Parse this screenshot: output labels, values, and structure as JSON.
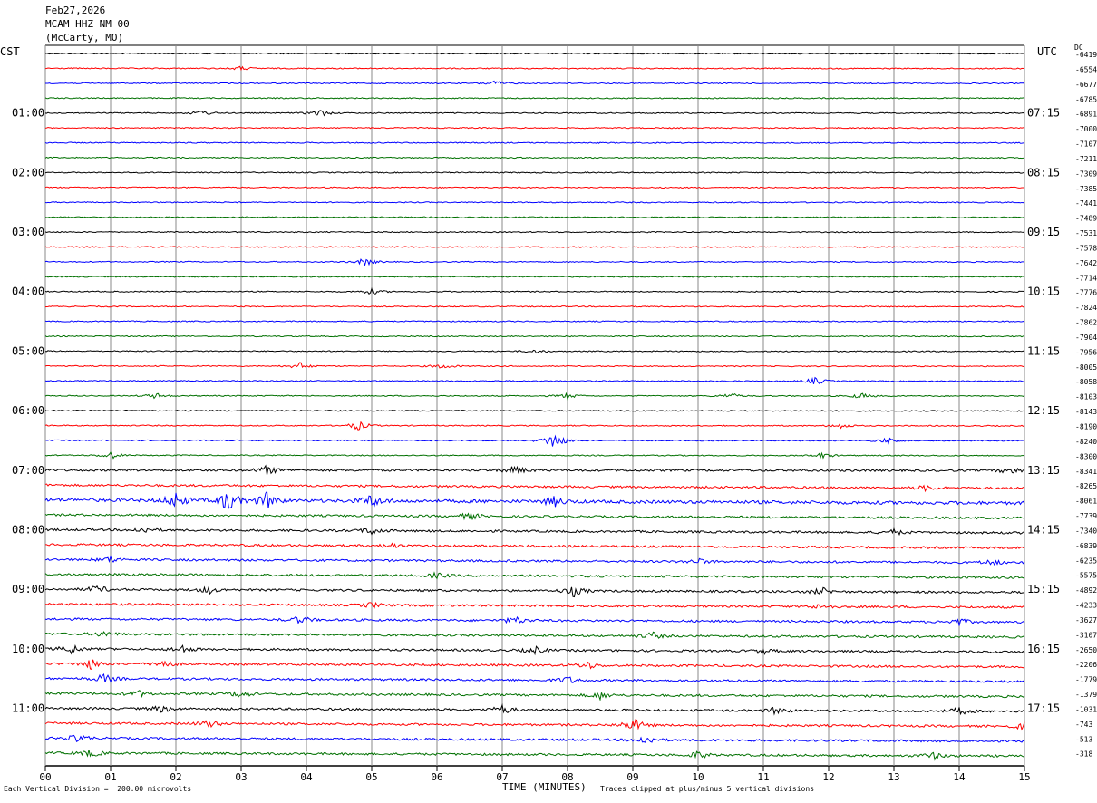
{
  "header": {
    "date": "Feb27,2026",
    "station": "MCAM HHZ NM 00",
    "location": "(McCarty, MO)"
  },
  "left_zone": "CST",
  "right_zone": "UTC",
  "dc_label": "DC",
  "footer": {
    "scale_note": "Each Vertical Division =  200.00 microvolts",
    "xlabel": "TIME (MINUTES)",
    "clip_note": "Traces clipped at plus/minus 5 vertical divisions"
  },
  "chart_data": {
    "type": "line",
    "title": "MCAM HHZ NM 00",
    "xlabel": "TIME (MINUTES)",
    "ylabel": "",
    "xlim": [
      0,
      15
    ],
    "x_ticks": [
      "00",
      "01",
      "02",
      "03",
      "04",
      "05",
      "06",
      "07",
      "08",
      "09",
      "10",
      "11",
      "12",
      "13",
      "14",
      "15"
    ],
    "trace_colors": [
      "#000000",
      "#ff0000",
      "#0000ff",
      "#007000"
    ],
    "left_time_labels": [
      "01:00",
      "02:00",
      "03:00",
      "04:00",
      "05:00",
      "06:00",
      "07:00",
      "08:00",
      "09:00",
      "10:00",
      "11:00"
    ],
    "right_time_labels": [
      "07:15",
      "08:15",
      "09:15",
      "10:15",
      "11:15",
      "12:15",
      "13:15",
      "14:15",
      "15:15",
      "16:15",
      "17:15"
    ],
    "dc_offsets": [
      "-6419",
      "-6554",
      "-6677",
      "-6785",
      "-6891",
      "-7000",
      "-7107",
      "-7211",
      "-7309",
      "-7385",
      "-7441",
      "-7489",
      "-7531",
      "-7578",
      "-7642",
      "-7714",
      "-7776",
      "-7824",
      "-7862",
      "-7904",
      "-7956",
      "-8005",
      "-8058",
      "-8103",
      "-8143",
      "-8190",
      "-8240",
      "-8300",
      "-8341",
      "-8265",
      "-8061",
      "-7739",
      "-7340",
      "-6839",
      "-6235",
      "-5575",
      "-4892",
      "-4233",
      "-3627",
      "-3107",
      "-2650",
      "-2206",
      "-1779",
      "-1379",
      "-1031",
      "-743",
      "-513",
      "-318"
    ],
    "noise_level": [
      1,
      1,
      1,
      1,
      1,
      1,
      1,
      1,
      1,
      1,
      1,
      1,
      1,
      1,
      1,
      1,
      1,
      1,
      1,
      1,
      1,
      1,
      1,
      1,
      1,
      1,
      1,
      1,
      2,
      2,
      3,
      2,
      2,
      2,
      2,
      2,
      2,
      2,
      2,
      2,
      2,
      2,
      2,
      2,
      2,
      2,
      2,
      2
    ],
    "events": [
      {
        "trace": 1,
        "minute": 3.0,
        "amp": 2
      },
      {
        "trace": 2,
        "minute": 6.9,
        "amp": 3
      },
      {
        "trace": 4,
        "minute": 2.4,
        "amp": 3
      },
      {
        "trace": 4,
        "minute": 4.2,
        "amp": 4
      },
      {
        "trace": 14,
        "minute": 4.9,
        "amp": 4
      },
      {
        "trace": 16,
        "minute": 5.0,
        "amp": 3
      },
      {
        "trace": 20,
        "minute": 7.5,
        "amp": 2
      },
      {
        "trace": 21,
        "minute": 3.9,
        "amp": 4
      },
      {
        "trace": 21,
        "minute": 6.1,
        "amp": 3
      },
      {
        "trace": 22,
        "minute": 11.8,
        "amp": 4
      },
      {
        "trace": 23,
        "minute": 1.7,
        "amp": 3
      },
      {
        "trace": 23,
        "minute": 8.0,
        "amp": 3
      },
      {
        "trace": 23,
        "minute": 10.5,
        "amp": 3
      },
      {
        "trace": 23,
        "minute": 12.5,
        "amp": 3
      },
      {
        "trace": 25,
        "minute": 4.8,
        "amp": 5
      },
      {
        "trace": 25,
        "minute": 12.2,
        "amp": 3
      },
      {
        "trace": 26,
        "minute": 7.8,
        "amp": 10
      },
      {
        "trace": 26,
        "minute": 12.9,
        "amp": 3
      },
      {
        "trace": 27,
        "minute": 1.0,
        "amp": 4
      },
      {
        "trace": 27,
        "minute": 11.9,
        "amp": 3
      },
      {
        "trace": 28,
        "minute": 3.4,
        "amp": 5
      },
      {
        "trace": 28,
        "minute": 7.2,
        "amp": 5
      },
      {
        "trace": 28,
        "minute": 14.8,
        "amp": 4
      },
      {
        "trace": 29,
        "minute": 13.5,
        "amp": 3
      },
      {
        "trace": 30,
        "minute": 2.0,
        "amp": 9
      },
      {
        "trace": 30,
        "minute": 2.8,
        "amp": 12
      },
      {
        "trace": 30,
        "minute": 3.4,
        "amp": 9
      },
      {
        "trace": 30,
        "minute": 5.0,
        "amp": 7
      },
      {
        "trace": 30,
        "minute": 7.8,
        "amp": 5
      },
      {
        "trace": 31,
        "minute": 6.5,
        "amp": 4
      },
      {
        "trace": 32,
        "minute": 1.5,
        "amp": 3
      },
      {
        "trace": 32,
        "minute": 5.0,
        "amp": 4
      },
      {
        "trace": 32,
        "minute": 13.0,
        "amp": 3
      },
      {
        "trace": 33,
        "minute": 5.3,
        "amp": 3
      },
      {
        "trace": 34,
        "minute": 1.0,
        "amp": 3
      },
      {
        "trace": 34,
        "minute": 10.0,
        "amp": 3
      },
      {
        "trace": 34,
        "minute": 14.5,
        "amp": 3
      },
      {
        "trace": 35,
        "minute": 6.0,
        "amp": 3
      },
      {
        "trace": 36,
        "minute": 0.8,
        "amp": 4
      },
      {
        "trace": 36,
        "minute": 2.5,
        "amp": 4
      },
      {
        "trace": 36,
        "minute": 8.1,
        "amp": 6
      },
      {
        "trace": 36,
        "minute": 11.9,
        "amp": 4
      },
      {
        "trace": 37,
        "minute": 5.0,
        "amp": 3
      },
      {
        "trace": 37,
        "minute": 11.9,
        "amp": 3
      },
      {
        "trace": 38,
        "minute": 3.9,
        "amp": 4
      },
      {
        "trace": 38,
        "minute": 7.2,
        "amp": 4
      },
      {
        "trace": 38,
        "minute": 14.0,
        "amp": 4
      },
      {
        "trace": 39,
        "minute": 0.9,
        "amp": 3
      },
      {
        "trace": 39,
        "minute": 9.3,
        "amp": 4
      },
      {
        "trace": 40,
        "minute": 0.4,
        "amp": 5
      },
      {
        "trace": 40,
        "minute": 2.1,
        "amp": 4
      },
      {
        "trace": 40,
        "minute": 7.5,
        "amp": 4
      },
      {
        "trace": 40,
        "minute": 11.0,
        "amp": 3
      },
      {
        "trace": 41,
        "minute": 0.7,
        "amp": 6
      },
      {
        "trace": 41,
        "minute": 1.8,
        "amp": 5
      },
      {
        "trace": 41,
        "minute": 8.3,
        "amp": 4
      },
      {
        "trace": 42,
        "minute": 0.9,
        "amp": 5
      },
      {
        "trace": 42,
        "minute": 8.0,
        "amp": 4
      },
      {
        "trace": 43,
        "minute": 1.4,
        "amp": 4
      },
      {
        "trace": 43,
        "minute": 3.0,
        "amp": 4
      },
      {
        "trace": 43,
        "minute": 8.5,
        "amp": 4
      },
      {
        "trace": 44,
        "minute": 1.8,
        "amp": 4
      },
      {
        "trace": 44,
        "minute": 7.0,
        "amp": 5
      },
      {
        "trace": 44,
        "minute": 11.2,
        "amp": 4
      },
      {
        "trace": 44,
        "minute": 14.0,
        "amp": 4
      },
      {
        "trace": 45,
        "minute": 2.5,
        "amp": 4
      },
      {
        "trace": 45,
        "minute": 9.0,
        "amp": 8
      },
      {
        "trace": 45,
        "minute": 15.0,
        "amp": 4
      },
      {
        "trace": 46,
        "minute": 0.5,
        "amp": 4
      },
      {
        "trace": 46,
        "minute": 9.2,
        "amp": 5
      },
      {
        "trace": 47,
        "minute": 0.7,
        "amp": 4
      },
      {
        "trace": 47,
        "minute": 10.0,
        "amp": 4
      },
      {
        "trace": 47,
        "minute": 13.6,
        "amp": 4
      }
    ]
  }
}
